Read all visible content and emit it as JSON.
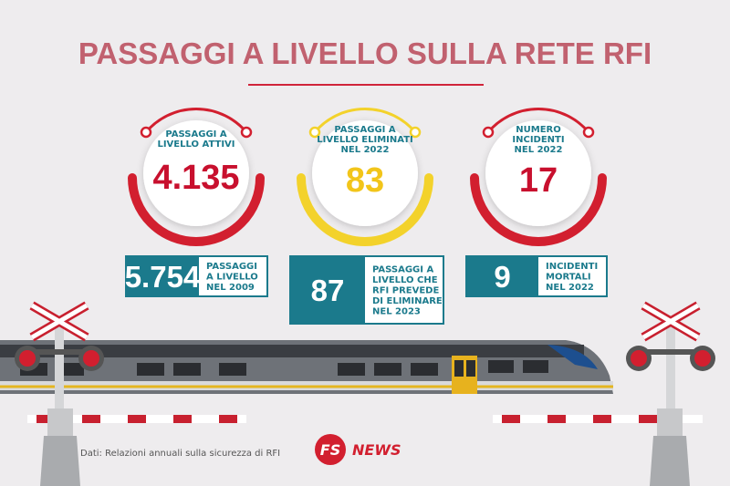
{
  "header": {
    "title": "PASSAGGI A LIVELLO SULLA RETE RFI"
  },
  "stats": [
    {
      "label_lines": [
        "PASSAGGI A",
        "LIVELLO ATTIVI"
      ],
      "value": "4.135"
    },
    {
      "label_lines": [
        "PASSAGGI A",
        "LIVELLO ELIMINATI",
        "NEL 2022"
      ],
      "value": "83"
    },
    {
      "label_lines": [
        "NUMERO",
        "INCIDENTI",
        "NEL 2022"
      ],
      "value": "17"
    }
  ],
  "boxes": [
    {
      "value": "5.754",
      "label_lines": [
        "PASSAGGI",
        "A LIVELLO",
        "NEL 2009"
      ]
    },
    {
      "value": "87",
      "label_lines": [
        "PASSAGGI A",
        "LIVELLO CHE",
        "RFI PREVEDE",
        "DI ELIMINARE",
        "NEL 2023"
      ]
    },
    {
      "value": "9",
      "label_lines": [
        "INCIDENTI",
        "MORTALI",
        "NEL 2022"
      ]
    }
  ],
  "footer": {
    "source": "Dati: Relazioni annuali sulla sicurezza di RFI",
    "logo_fs": "FS",
    "logo_news": "NEWS"
  }
}
